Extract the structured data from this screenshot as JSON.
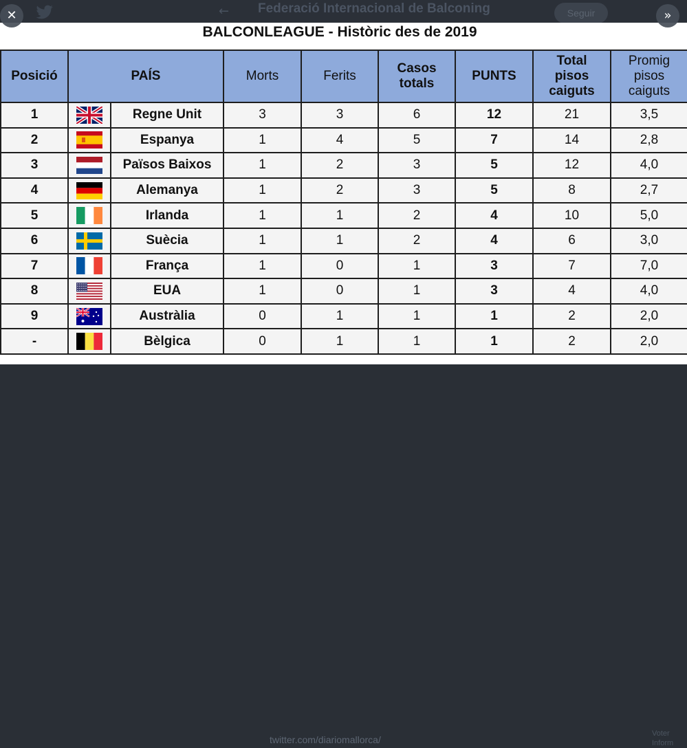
{
  "background": {
    "account_name": "Federació Internacional de Balconing",
    "follow_label": "Seguir",
    "link_text": "twitter.com/diariomallorca/",
    "side_text": "Voter\nInform"
  },
  "controls": {
    "close_glyph": "✕",
    "expand_glyph": "»",
    "back_glyph": "←"
  },
  "table": {
    "title": "BALCONLEAGUE - Històric des de 2019",
    "headers": {
      "pos": "Posició",
      "country": "PAÍS",
      "morts": "Morts",
      "ferits": "Ferits",
      "casos": "Casos totals",
      "punts": "PUNTS",
      "total_pisos": "Total pisos caiguts",
      "promig": "Promig pisos caiguts"
    },
    "rows": [
      {
        "pos": "1",
        "flag": "uk-flag-icon",
        "country": "Regne Unit",
        "morts": "3",
        "ferits": "3",
        "casos": "6",
        "punts": "12",
        "total": "21",
        "promig": "3,5"
      },
      {
        "pos": "2",
        "flag": "spain-flag-icon",
        "country": "Espanya",
        "morts": "1",
        "ferits": "4",
        "casos": "5",
        "punts": "7",
        "total": "14",
        "promig": "2,8"
      },
      {
        "pos": "3",
        "flag": "netherlands-flag-icon",
        "country": "Països Baixos",
        "morts": "1",
        "ferits": "2",
        "casos": "3",
        "punts": "5",
        "total": "12",
        "promig": "4,0"
      },
      {
        "pos": "4",
        "flag": "germany-flag-icon",
        "country": "Alemanya",
        "morts": "1",
        "ferits": "2",
        "casos": "3",
        "punts": "5",
        "total": "8",
        "promig": "2,7"
      },
      {
        "pos": "5",
        "flag": "ireland-flag-icon",
        "country": "Irlanda",
        "morts": "1",
        "ferits": "1",
        "casos": "2",
        "punts": "4",
        "total": "10",
        "promig": "5,0"
      },
      {
        "pos": "6",
        "flag": "sweden-flag-icon",
        "country": "Suècia",
        "morts": "1",
        "ferits": "1",
        "casos": "2",
        "punts": "4",
        "total": "6",
        "promig": "3,0"
      },
      {
        "pos": "7",
        "flag": "france-flag-icon",
        "country": "França",
        "morts": "1",
        "ferits": "0",
        "casos": "1",
        "punts": "3",
        "total": "7",
        "promig": "7,0"
      },
      {
        "pos": "8",
        "flag": "usa-flag-icon",
        "country": "EUA",
        "morts": "1",
        "ferits": "0",
        "casos": "1",
        "punts": "3",
        "total": "4",
        "promig": "4,0"
      },
      {
        "pos": "9",
        "flag": "australia-flag-icon",
        "country": "Austràlia",
        "morts": "0",
        "ferits": "1",
        "casos": "1",
        "punts": "1",
        "total": "2",
        "promig": "2,0"
      },
      {
        "pos": "-",
        "flag": "belgium-flag-icon",
        "country": "Bèlgica",
        "morts": "0",
        "ferits": "1",
        "casos": "1",
        "punts": "1",
        "total": "2",
        "promig": "2,0"
      }
    ]
  },
  "colors": {
    "header_bg": "#8eaadb",
    "row_bg": "#f4f4f4",
    "page_bg": "#2a2f36"
  }
}
